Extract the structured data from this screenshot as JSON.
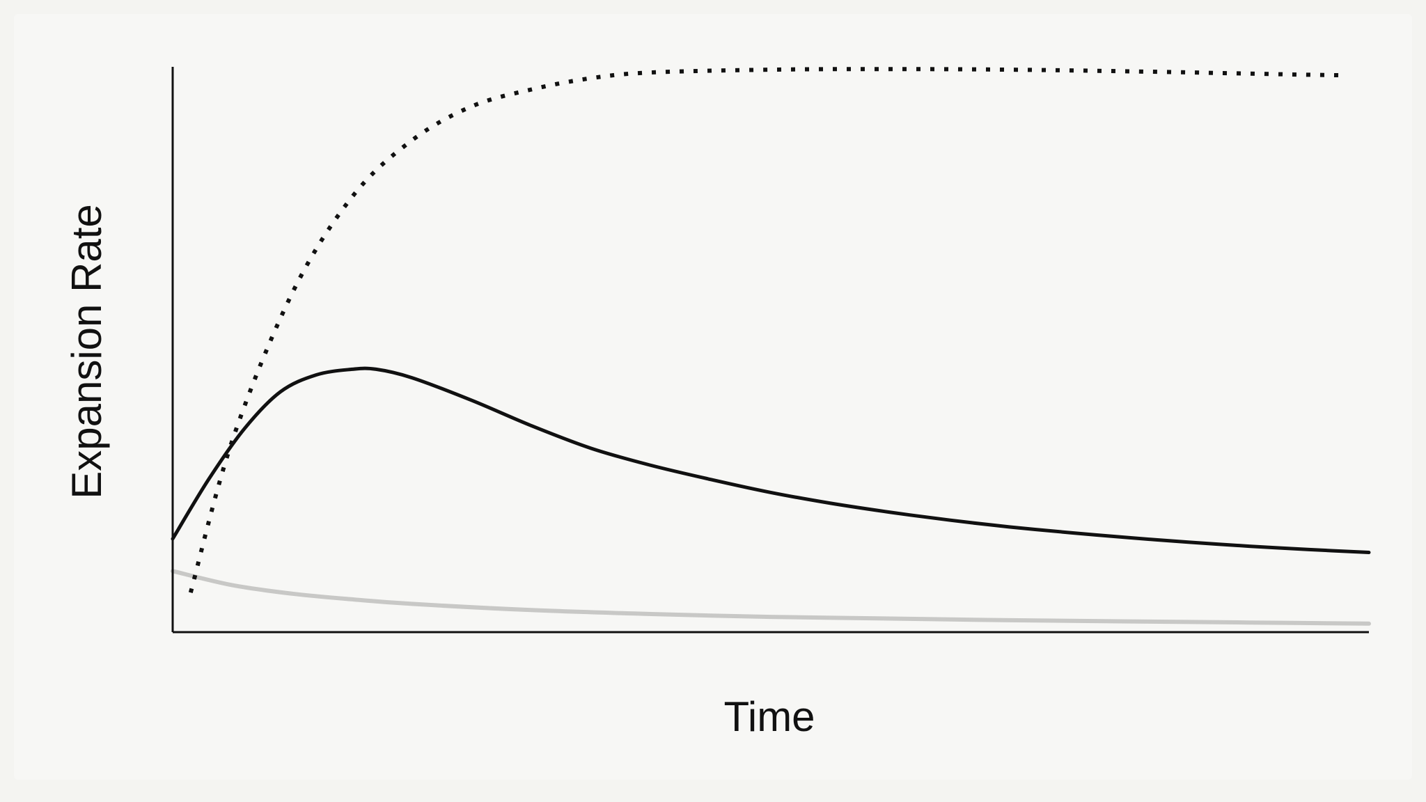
{
  "chart_data": {
    "type": "line",
    "title": "",
    "xlabel": "Time",
    "ylabel": "Expansion Rate",
    "xlim": [
      0,
      100
    ],
    "ylim": [
      0,
      100
    ],
    "grid": false,
    "legend": "none",
    "colors": {
      "solid": "#111111",
      "dotted": "#111111",
      "light": "#c8c8c6",
      "axis": "#111111"
    },
    "series": [
      {
        "style": "dotted",
        "x": [
          1.5,
          5,
          10,
          15,
          20,
          25,
          30,
          35,
          40,
          50,
          60,
          70,
          80,
          90,
          95,
          98
        ],
        "y": [
          7,
          34,
          60,
          77,
          87,
          93,
          96,
          98,
          99,
          99.5,
          99.6,
          99.5,
          99.2,
          98.8,
          98.6,
          98.5
        ]
      },
      {
        "style": "solid",
        "x": [
          0,
          3,
          6,
          9,
          12,
          15,
          17,
          20,
          25,
          30,
          35,
          40,
          45,
          50,
          55,
          60,
          65,
          70,
          75,
          80,
          85,
          90,
          95,
          100
        ],
        "y": [
          16.5,
          27,
          36,
          42.5,
          45.5,
          46.5,
          46.5,
          45,
          41,
          36.5,
          32.5,
          29.5,
          27,
          24.7,
          22.8,
          21.2,
          19.8,
          18.6,
          17.6,
          16.7,
          15.9,
          15.2,
          14.6,
          14.1
        ]
      },
      {
        "style": "light",
        "x": [
          0,
          5,
          10,
          15,
          20,
          30,
          40,
          50,
          60,
          70,
          80,
          90,
          100
        ],
        "y": [
          10.8,
          8.3,
          6.8,
          5.8,
          5.0,
          3.9,
          3.2,
          2.7,
          2.4,
          2.1,
          1.9,
          1.7,
          1.5
        ]
      }
    ]
  }
}
